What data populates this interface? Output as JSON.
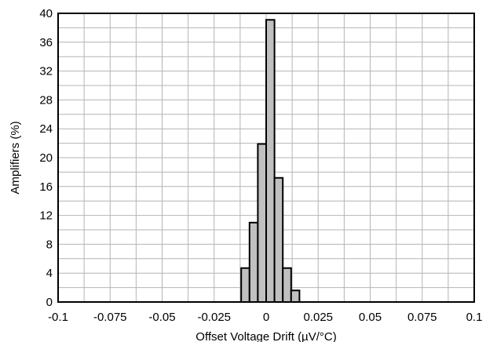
{
  "chart_data": {
    "type": "bar",
    "xlabel": "Offset Voltage Drift (µV/°C)",
    "ylabel": "Amplifiers (%)",
    "xlim": [
      -0.1,
      0.1
    ],
    "ylim": [
      0,
      40
    ],
    "x_ticks": [
      -0.1,
      -0.075,
      -0.05,
      -0.025,
      0,
      0.025,
      0.05,
      0.075,
      0.1
    ],
    "x_tick_labels": [
      "-0.1",
      "-0.075",
      "-0.05",
      "-0.025",
      "0",
      "0.025",
      "0.05",
      "0.075",
      "0.1"
    ],
    "y_ticks": [
      0,
      4,
      8,
      12,
      16,
      20,
      24,
      28,
      32,
      36,
      40
    ],
    "y_tick_labels": [
      "0",
      "4",
      "8",
      "12",
      "16",
      "20",
      "24",
      "28",
      "32",
      "36",
      "40"
    ],
    "x_minor_gridlines": [
      -0.0875,
      -0.0625,
      -0.0375,
      -0.0125,
      0.0125,
      0.0375,
      0.0625,
      0.0875
    ],
    "y_minor_gridlines": [
      2,
      6,
      10,
      14,
      18,
      22,
      26,
      30,
      34,
      38
    ],
    "grid": true,
    "bin_width": 0.004,
    "bars": [
      {
        "x_start": -0.012,
        "value": 4.7
      },
      {
        "x_start": -0.008,
        "value": 11.0
      },
      {
        "x_start": -0.004,
        "value": 21.9
      },
      {
        "x_start": 0.0,
        "value": 39.1
      },
      {
        "x_start": 0.004,
        "value": 17.2
      },
      {
        "x_start": 0.008,
        "value": 4.7
      },
      {
        "x_start": 0.012,
        "value": 1.6
      }
    ],
    "colors": {
      "bar_fill": "#c0c0c0",
      "bar_stroke": "#000000",
      "grid": "#b4b4b4",
      "frame": "#000000"
    }
  }
}
